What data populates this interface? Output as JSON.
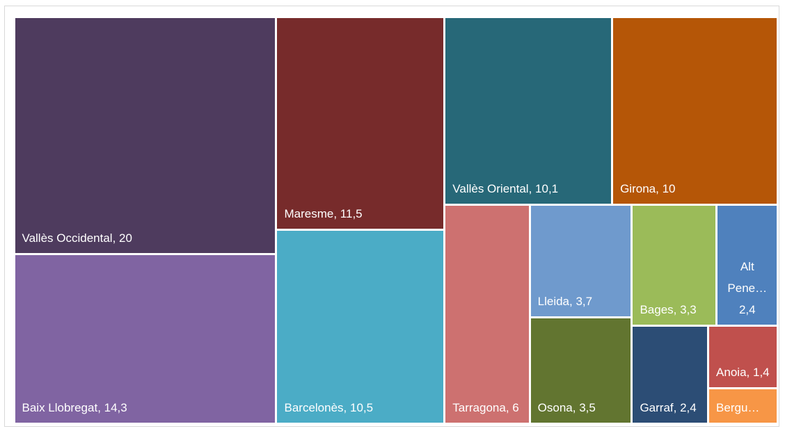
{
  "chart_data": {
    "type": "treemap",
    "categories": [
      "Vallès Occidental",
      "Baix Llobregat",
      "Maresme",
      "Barcelonès",
      "Vallès Oriental",
      "Girona",
      "Tarragona",
      "Lleida",
      "Osona",
      "Bages",
      "Alt Pene…",
      "Garraf",
      "Anoia",
      "Bergu…"
    ],
    "values": [
      20,
      14.3,
      11.5,
      10.5,
      10.1,
      10,
      6,
      3.7,
      3.5,
      3.3,
      2.4,
      2.4,
      1.4,
      0.8
    ],
    "value_labels": [
      "20",
      "14,3",
      "11,5",
      "10,5",
      "10,1",
      "10",
      "6",
      "3,7",
      "3,5",
      "3,3",
      "2,4",
      "2,4",
      "1,4",
      null
    ],
    "label_separator": ", ",
    "colors": [
      "#4e3b5e",
      "#8064a2",
      "#772b2b",
      "#4bacc6",
      "#276878",
      "#b55607",
      "#cd7170",
      "#6f9acd",
      "#627530",
      "#9bbb59",
      "#4f81bd",
      "#2c4d75",
      "#c0504d",
      "#f79646"
    ]
  }
}
